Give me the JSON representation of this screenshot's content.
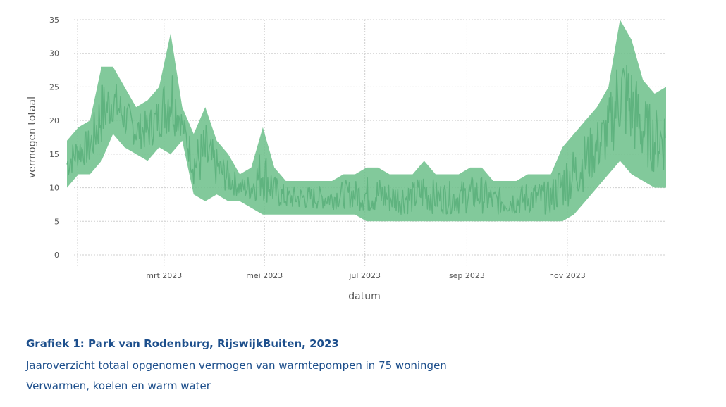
{
  "chart_data": {
    "type": "line",
    "xlabel": "datum",
    "ylabel": "vermogen totaal",
    "ylim": [
      0,
      35
    ],
    "yticks": [
      "0",
      "5",
      "10",
      "15",
      "20",
      "25",
      "30",
      "35"
    ],
    "xticks": [
      {
        "date": "2023-03-01",
        "label": "mrt 2023"
      },
      {
        "date": "2023-05-01",
        "label": "mei 2023"
      },
      {
        "date": "2023-07-01",
        "label": "jul 2023"
      },
      {
        "date": "2023-09-01",
        "label": "sep 2023"
      },
      {
        "date": "2023-11-01",
        "label": "nov 2023"
      }
    ],
    "xlim": [
      "2023-01-01",
      "2023-12-31"
    ],
    "grid": true,
    "color": "#6cbf8a",
    "x": [
      "2023-01-01",
      "2023-01-08",
      "2023-01-15",
      "2023-01-22",
      "2023-01-29",
      "2023-02-05",
      "2023-02-12",
      "2023-02-19",
      "2023-02-26",
      "2023-03-05",
      "2023-03-12",
      "2023-03-19",
      "2023-03-26",
      "2023-04-02",
      "2023-04-09",
      "2023-04-16",
      "2023-04-23",
      "2023-04-30",
      "2023-05-07",
      "2023-05-14",
      "2023-05-21",
      "2023-05-28",
      "2023-06-04",
      "2023-06-11",
      "2023-06-18",
      "2023-06-25",
      "2023-07-02",
      "2023-07-09",
      "2023-07-16",
      "2023-07-23",
      "2023-07-30",
      "2023-08-06",
      "2023-08-13",
      "2023-08-20",
      "2023-08-27",
      "2023-09-03",
      "2023-09-10",
      "2023-09-17",
      "2023-09-24",
      "2023-10-01",
      "2023-10-08",
      "2023-10-15",
      "2023-10-22",
      "2023-10-29",
      "2023-11-05",
      "2023-11-12",
      "2023-11-19",
      "2023-11-26",
      "2023-12-03",
      "2023-12-10",
      "2023-12-17",
      "2023-12-24",
      "2023-12-31"
    ],
    "series": [
      {
        "min": [
          10,
          12,
          12,
          14,
          18,
          16,
          15,
          14,
          16,
          15,
          17,
          9,
          8,
          9,
          8,
          8,
          7,
          6,
          6,
          6,
          6,
          6,
          6,
          6,
          6,
          6,
          5,
          5,
          5,
          5,
          5,
          5,
          5,
          5,
          5,
          5,
          5,
          5,
          5,
          5,
          5,
          5,
          5,
          5,
          6,
          8,
          10,
          12,
          14,
          12,
          11,
          10,
          10
        ],
        "max": [
          17,
          19,
          20,
          28,
          28,
          25,
          22,
          23,
          25,
          33,
          22,
          18,
          22,
          17,
          15,
          12,
          13,
          19,
          13,
          11,
          11,
          11,
          11,
          11,
          12,
          12,
          13,
          13,
          12,
          12,
          12,
          14,
          12,
          12,
          12,
          13,
          13,
          11,
          11,
          11,
          12,
          12,
          12,
          16,
          18,
          20,
          22,
          25,
          35,
          32,
          26,
          24,
          25
        ]
      }
    ]
  },
  "caption": {
    "title": "Grafiek 1: Park van Rodenburg, RijswijkBuiten, 2023",
    "line1": "Jaaroverzicht totaal opgenomen vermogen van warmtepompen in 75 woningen",
    "line2": "Verwarmen, koelen en warm water"
  }
}
